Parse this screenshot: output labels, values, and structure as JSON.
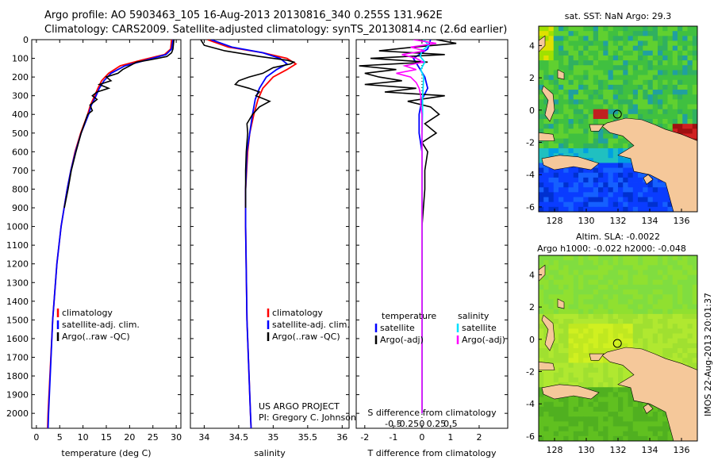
{
  "header": {
    "line1": "Argo profile: AO 5903463_105 16-Aug-2013 20130816_340 0.255S 131.962E",
    "line2": "Climatology: CARS2009. Satellite-adjusted climatology: synTS_20130814.nc (2.6d earlier)"
  },
  "colors": {
    "climatology": "#ff0000",
    "satellite": "#0000ff",
    "argo": "#000000",
    "salinity_satellite": "#00e0ff",
    "salinity_argo": "#ff00ff",
    "land": "#f5c89a"
  },
  "chart_data": [
    {
      "type": "line",
      "name": "temperature-profile",
      "xlabel": "temperature (deg C)",
      "xlim": [
        -1,
        31
      ],
      "ylim": [
        2080,
        0
      ],
      "xticks": [
        "0",
        "5",
        "10",
        "15",
        "20",
        "25",
        "30"
      ],
      "xtick_values": [
        0,
        5,
        10,
        15,
        20,
        25,
        30
      ],
      "yticks": [
        "0",
        "100",
        "200",
        "300",
        "400",
        "500",
        "600",
        "700",
        "800",
        "900",
        "1000",
        "1100",
        "1200",
        "1300",
        "1400",
        "1500",
        "1600",
        "1700",
        "1800",
        "1900",
        "2000"
      ],
      "ytick_values": [
        0,
        100,
        200,
        300,
        400,
        500,
        600,
        700,
        800,
        900,
        1000,
        1100,
        1200,
        1300,
        1400,
        1500,
        1600,
        1700,
        1800,
        1900,
        2000
      ],
      "legend": [
        "climatology",
        "satellite-adj. clim.",
        "Argo(..raw -QC)"
      ],
      "series": [
        {
          "name": "climatology",
          "depth": [
            0,
            50,
            80,
            110,
            140,
            180,
            220,
            260,
            300,
            350,
            400,
            500,
            600,
            700,
            800,
            1000,
            1200,
            1500,
            2000,
            2080
          ],
          "values": [
            29.0,
            28.8,
            27.5,
            22.5,
            18.0,
            15.5,
            14.0,
            13.2,
            12.5,
            11.6,
            11.0,
            9.5,
            8.3,
            7.4,
            6.6,
            5.3,
            4.4,
            3.5,
            2.5,
            2.4
          ]
        },
        {
          "name": "satellite-adj. clim.",
          "depth": [
            0,
            50,
            80,
            110,
            140,
            180,
            220,
            260,
            300,
            350,
            400,
            500,
            600,
            700,
            800,
            1000,
            1200,
            1500,
            2000,
            2080
          ],
          "values": [
            29.3,
            29.0,
            27.8,
            23.5,
            19.0,
            16.0,
            14.5,
            13.5,
            12.8,
            11.8,
            11.2,
            9.6,
            8.4,
            7.4,
            6.6,
            5.3,
            4.4,
            3.5,
            2.6,
            2.5
          ]
        },
        {
          "name": "Argo(..raw -QC)",
          "depth": [
            0,
            50,
            70,
            90,
            100,
            110,
            120,
            140,
            160,
            180,
            200,
            220,
            240,
            260,
            280,
            300,
            320,
            350,
            380,
            400,
            450,
            500,
            600,
            700,
            800,
            900
          ],
          "values": [
            29.5,
            29.3,
            29.0,
            28.0,
            26.0,
            24.0,
            21.5,
            20.0,
            18.5,
            17.5,
            15.0,
            16.0,
            13.5,
            15.5,
            13.0,
            12.0,
            13.0,
            11.5,
            12.0,
            11.0,
            10.3,
            9.6,
            8.5,
            7.5,
            6.8,
            6.0
          ]
        }
      ]
    },
    {
      "type": "line",
      "name": "salinity-profile",
      "xlabel": "salinity",
      "xlim": [
        33.8,
        36.1
      ],
      "ylim": [
        2080,
        0
      ],
      "xticks": [
        "34",
        "34.5",
        "35",
        "35.5",
        "36"
      ],
      "xtick_values": [
        34,
        34.5,
        35,
        35.5,
        36
      ],
      "legend": [
        "climatology",
        "satellite-adj. clim.",
        "Argo(..raw -QC)"
      ],
      "annotation": [
        "US ARGO PROJECT",
        "PI: Gregory C. Johnson"
      ],
      "series": [
        {
          "name": "climatology",
          "depth": [
            0,
            40,
            70,
            100,
            130,
            160,
            200,
            260,
            320,
            400,
            500,
            600,
            800,
            1000,
            1500,
            2000,
            2080
          ],
          "values": [
            34.05,
            34.35,
            34.85,
            35.2,
            35.33,
            35.2,
            35.0,
            34.85,
            34.78,
            34.72,
            34.66,
            34.63,
            34.6,
            34.6,
            34.62,
            34.67,
            34.68
          ]
        },
        {
          "name": "satellite-adj. clim.",
          "depth": [
            0,
            40,
            70,
            100,
            130,
            160,
            200,
            260,
            320,
            400,
            500,
            600,
            800,
            1000,
            1500,
            2000,
            2080
          ],
          "values": [
            34.1,
            34.4,
            34.85,
            35.1,
            35.2,
            35.05,
            34.9,
            34.8,
            34.74,
            34.7,
            34.66,
            34.62,
            34.6,
            34.6,
            34.62,
            34.67,
            34.68
          ]
        },
        {
          "name": "Argo(..raw -QC)",
          "depth": [
            0,
            30,
            60,
            90,
            110,
            120,
            130,
            150,
            180,
            200,
            220,
            240,
            260,
            280,
            300,
            330,
            360,
            400,
            450,
            500,
            600,
            700,
            800,
            900
          ],
          "values": [
            33.95,
            34.0,
            34.3,
            34.8,
            35.2,
            35.3,
            35.25,
            35.0,
            34.85,
            34.65,
            34.5,
            34.45,
            34.65,
            34.8,
            34.75,
            34.95,
            34.8,
            34.7,
            34.62,
            34.63,
            34.61,
            34.6,
            34.6,
            34.6
          ]
        }
      ]
    },
    {
      "type": "line",
      "name": "difference-profile",
      "xlabel": "T difference from climatology",
      "x2label": "S difference from climatology",
      "xlim": [
        -2.3,
        3.0
      ],
      "ylim": [
        2080,
        0
      ],
      "xticks": [
        "-2",
        "-1",
        "0",
        "1",
        "2"
      ],
      "xtick_values": [
        -2,
        -1,
        0,
        1,
        2
      ],
      "sticks": [
        "-0.5",
        "-0.25",
        "0",
        "0.25",
        "0.5"
      ],
      "stick_values": [
        -0.5,
        -0.25,
        0,
        0.25,
        0.5
      ],
      "legend": [
        {
          "group": "temperature",
          "items": [
            "satellite",
            "Argo(-adj)"
          ]
        },
        {
          "group": "salinity",
          "items": [
            "satellite",
            "Argo(-adj)"
          ]
        }
      ],
      "series": [
        {
          "name": "T satellite",
          "depth": [
            0,
            50,
            100,
            150,
            200,
            260,
            320,
            400,
            500,
            600,
            800,
            1000,
            1500,
            2000
          ],
          "values": [
            0.3,
            0.2,
            -0.3,
            -0.1,
            0.1,
            0.2,
            0.0,
            -0.1,
            -0.1,
            0.0,
            0.0,
            0.0,
            0.0,
            0.0
          ]
        },
        {
          "name": "T Argo(-adj)",
          "depth": [
            0,
            20,
            40,
            60,
            80,
            100,
            120,
            140,
            160,
            180,
            200,
            220,
            240,
            260,
            280,
            300,
            330,
            360,
            400,
            450,
            500,
            550,
            600,
            700,
            800,
            900,
            1000,
            1100,
            1500,
            2000
          ],
          "values": [
            0.5,
            1.2,
            -0.3,
            -1.5,
            0.8,
            -1.8,
            0.2,
            -2.2,
            -0.9,
            -2.0,
            -1.5,
            -0.7,
            -2.0,
            -0.2,
            -1.3,
            0.8,
            -0.5,
            0.3,
            0.6,
            0.1,
            0.5,
            0.0,
            0.2,
            0.1,
            0.1,
            0.05,
            0.0,
            0.0,
            0.0,
            0.0
          ]
        },
        {
          "name": "S satellite",
          "depth": [
            0,
            30,
            60,
            90,
            120,
            160,
            200,
            260,
            320,
            400,
            500,
            600,
            800,
            1000,
            1500,
            2000
          ],
          "values": [
            0.03,
            0.12,
            0.0,
            -0.03,
            0.05,
            -0.02,
            0.03,
            0.02,
            0.01,
            0.01,
            0.0,
            0.0,
            0.0,
            0.0,
            0.0,
            0.0
          ]
        },
        {
          "name": "S Argo(-adj)",
          "depth": [
            0,
            20,
            40,
            60,
            80,
            100,
            120,
            140,
            160,
            180,
            200,
            230,
            260,
            300,
            350,
            400,
            500,
            600,
            800,
            1000,
            1500,
            2000
          ],
          "values": [
            -0.15,
            0.25,
            -0.2,
            0.05,
            -0.35,
            -0.1,
            0.02,
            -0.3,
            -0.1,
            -0.45,
            -0.2,
            -0.1,
            -0.05,
            -0.02,
            -0.02,
            0.0,
            0.0,
            0.0,
            0.0,
            0.0,
            0.0,
            0.0
          ]
        }
      ]
    },
    {
      "type": "heatmap",
      "name": "sst-map",
      "title": "sat. SST: NaN Argo: 29.3",
      "xticks": [
        "128",
        "130",
        "132",
        "134",
        "136"
      ],
      "xtick_values": [
        128,
        130,
        132,
        134,
        136
      ],
      "yticks": [
        "4",
        "2",
        "0",
        "-2",
        "-4",
        "-6"
      ],
      "ytick_values": [
        4,
        2,
        0,
        -2,
        -4,
        -6
      ],
      "xlim": [
        127,
        137
      ],
      "ylim": [
        -6.3,
        5.2
      ]
    },
    {
      "type": "heatmap",
      "name": "sla-map",
      "title": [
        "Altim. SLA: -0.0022",
        "Argo h1000: -0.022 h2000: -0.048"
      ],
      "xticks": [
        "128",
        "130",
        "132",
        "134",
        "136"
      ],
      "xtick_values": [
        128,
        130,
        132,
        134,
        136
      ],
      "yticks": [
        "4",
        "2",
        "0",
        "-2",
        "-4",
        "-6"
      ],
      "ytick_values": [
        4,
        2,
        0,
        -2,
        -4,
        -6
      ],
      "xlim": [
        127,
        137
      ],
      "ylim": [
        -6.3,
        5.2
      ]
    }
  ],
  "stamp": "IMOS 22-Aug-2013 20:01:37"
}
